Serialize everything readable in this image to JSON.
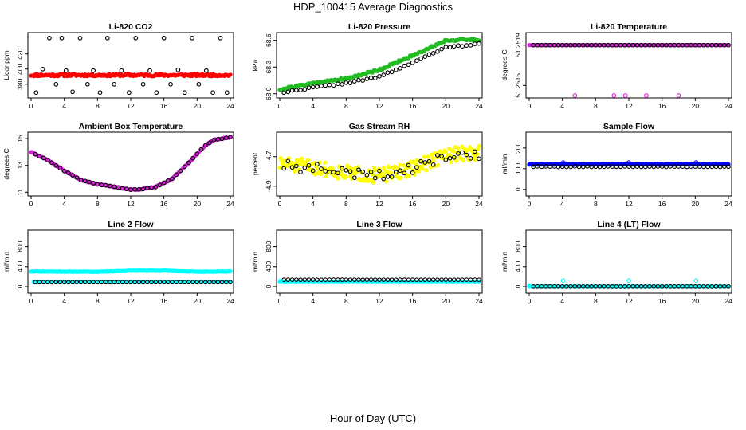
{
  "title": "HDP_100415  Average Diagnostics",
  "x_axis_title": "Hour of Day (UTC)",
  "colors": {
    "red": "#ff0000",
    "green": "#22bb22",
    "magenta": "#dd22dd",
    "yellow": "#ffff00",
    "blue": "#0000ff",
    "cyan": "#00ffff",
    "black": "#000000"
  },
  "chart_data": [
    {
      "type": "scatter",
      "title": "Li-820 CO2",
      "ylabel": "Licor ppm",
      "xlim": [
        0,
        24
      ],
      "ylim": [
        365,
        445
      ],
      "x_ticks": [
        0,
        4,
        8,
        12,
        16,
        20,
        24
      ],
      "y_ticks": [
        380,
        400,
        420
      ],
      "series": [
        {
          "color": "red",
          "marker": "filled",
          "x0": 0,
          "x1": 24,
          "n": 200,
          "base": 392,
          "noise": 1.5,
          "seed": 11
        },
        {
          "color": "black",
          "marker": "open",
          "x": [
            0.6,
            1.4,
            2.2,
            3.0,
            3.7,
            4.2,
            5.0,
            5.9,
            6.8,
            7.5,
            8.3,
            9.2,
            10.0,
            10.9,
            11.8,
            12.6,
            13.5,
            14.3,
            15.1,
            16.0,
            16.8,
            17.7,
            18.5,
            19.4,
            20.2,
            21.1,
            21.9,
            22.8,
            23.6
          ],
          "y": [
            369,
            400,
            441,
            380,
            441,
            398,
            370,
            441,
            380,
            398,
            369,
            441,
            380,
            398,
            369,
            441,
            380,
            398,
            369,
            441,
            380,
            399,
            369,
            441,
            380,
            398,
            369,
            441,
            369
          ]
        }
      ]
    },
    {
      "type": "scatter",
      "title": "Li-820 Pressure",
      "ylabel": "kPa",
      "xlim": [
        0,
        24
      ],
      "ylim": [
        67.98,
        68.66
      ],
      "x_ticks": [
        0,
        4,
        8,
        12,
        16,
        20,
        24
      ],
      "y_ticks": [
        68.0,
        68.3,
        68.6
      ],
      "y_tick_labels": [
        "68.0",
        "68.3",
        "68.6"
      ],
      "series": [
        {
          "color": "green",
          "marker": "filled",
          "curve": [
            [
              0,
              68.05
            ],
            [
              4,
              68.12
            ],
            [
              8,
              68.17
            ],
            [
              12,
              68.27
            ],
            [
              16,
              68.43
            ],
            [
              20,
              68.6
            ],
            [
              24,
              68.61
            ]
          ],
          "x0": 0,
          "x1": 24,
          "n": 160,
          "noise": 0.012,
          "seed": 21
        },
        {
          "color": "black",
          "marker": "open",
          "curve": [
            [
              0,
              68.01
            ],
            [
              4,
              68.07
            ],
            [
              8,
              68.12
            ],
            [
              12,
              68.19
            ],
            [
              16,
              68.35
            ],
            [
              20,
              68.52
            ],
            [
              24,
              68.56
            ]
          ],
          "x0": 0.5,
          "x1": 24,
          "n": 48,
          "noise": 0.008,
          "seed": 22
        }
      ]
    },
    {
      "type": "scatter",
      "title": "Li-820 Temperature",
      "ylabel": "degrees C",
      "xlim": [
        0,
        24
      ],
      "ylim": [
        51.2514,
        51.252
      ],
      "x_ticks": [
        0,
        4,
        8,
        12,
        16,
        20,
        24
      ],
      "y_ticks": [
        51.2515,
        51.2519
      ],
      "y_tick_labels": [
        "51.2515",
        "51.2519"
      ],
      "series": [
        {
          "color": "magenta",
          "marker": "filled",
          "x0": 0,
          "x1": 24,
          "n": 160,
          "base": 51.2519,
          "noise": 0,
          "seed": 31
        },
        {
          "color": "black",
          "marker": "open",
          "x0": 0.5,
          "x1": 24,
          "n": 48,
          "base": 51.2519,
          "noise": 0,
          "seed": 32
        },
        {
          "color": "magenta",
          "marker": "open",
          "x": [
            5.5,
            10.2,
            11.6,
            14.1,
            18.0
          ],
          "y": [
            51.2514,
            51.2514,
            51.2514,
            51.2514,
            51.2514
          ]
        }
      ]
    },
    {
      "type": "scatter",
      "title": "Ambient Box Temperature",
      "ylabel": "degrees C",
      "xlim": [
        0,
        24
      ],
      "ylim": [
        10.9,
        15.3
      ],
      "x_ticks": [
        0,
        4,
        8,
        12,
        16,
        20,
        24
      ],
      "y_ticks": [
        11,
        13,
        15
      ],
      "series": [
        {
          "color": "magenta",
          "marker": "filled",
          "curve": [
            [
              0,
              14.0
            ],
            [
              2,
              13.4
            ],
            [
              4,
              12.6
            ],
            [
              6,
              11.9
            ],
            [
              8,
              11.6
            ],
            [
              10,
              11.4
            ],
            [
              12,
              11.2
            ],
            [
              13,
              11.2
            ],
            [
              15,
              11.4
            ],
            [
              17,
              12.0
            ],
            [
              19,
              13.2
            ],
            [
              21,
              14.5
            ],
            [
              22,
              14.9
            ],
            [
              24,
              15.1
            ]
          ],
          "x0": 0,
          "x1": 24,
          "n": 160,
          "noise": 0.03,
          "seed": 41
        },
        {
          "color": "black",
          "marker": "open",
          "curve": [
            [
              0,
              14.0
            ],
            [
              2,
              13.4
            ],
            [
              4,
              12.6
            ],
            [
              6,
              11.9
            ],
            [
              8,
              11.6
            ],
            [
              10,
              11.4
            ],
            [
              12,
              11.2
            ],
            [
              13,
              11.2
            ],
            [
              15,
              11.4
            ],
            [
              17,
              12.0
            ],
            [
              19,
              13.2
            ],
            [
              21,
              14.5
            ],
            [
              22,
              14.9
            ],
            [
              24,
              15.1
            ]
          ],
          "x0": 0.5,
          "x1": 24,
          "n": 48,
          "noise": 0.02,
          "seed": 42
        }
      ]
    },
    {
      "type": "scatter",
      "title": "Gas Stream RH",
      "ylabel": "percent",
      "xlim": [
        0,
        24
      ],
      "ylim": [
        -4.95,
        -4.55
      ],
      "x_ticks": [
        0,
        4,
        8,
        12,
        16,
        20,
        24
      ],
      "y_ticks": [
        -4.9,
        -4.7
      ],
      "y_tick_labels": [
        "-4.9",
        "-4.7"
      ],
      "series": [
        {
          "color": "yellow",
          "marker": "filled",
          "curve": [
            [
              0,
              -4.75
            ],
            [
              4,
              -4.77
            ],
            [
              8,
              -4.81
            ],
            [
              12,
              -4.83
            ],
            [
              16,
              -4.78
            ],
            [
              20,
              -4.69
            ],
            [
              24,
              -4.67
            ]
          ],
          "x0": 0,
          "x1": 24,
          "n": 220,
          "noise": 0.05,
          "seed": 51
        },
        {
          "color": "black",
          "marker": "open",
          "curve": [
            [
              0,
              -4.76
            ],
            [
              4,
              -4.78
            ],
            [
              8,
              -4.81
            ],
            [
              12,
              -4.83
            ],
            [
              16,
              -4.78
            ],
            [
              20,
              -4.7
            ],
            [
              24,
              -4.68
            ]
          ],
          "x0": 0.5,
          "x1": 24,
          "n": 48,
          "noise": 0.035,
          "seed": 52
        }
      ]
    },
    {
      "type": "scatter",
      "title": "Sample Flow",
      "ylabel": "ml/min",
      "xlim": [
        0,
        24
      ],
      "ylim": [
        -20,
        265
      ],
      "x_ticks": [
        0,
        4,
        8,
        12,
        16,
        20,
        24
      ],
      "y_ticks": [
        0,
        100,
        200
      ],
      "series": [
        {
          "color": "blue",
          "marker": "filled",
          "x0": 0,
          "x1": 24,
          "n": 200,
          "base": 121,
          "noise": 2,
          "seed": 61
        },
        {
          "color": "black",
          "marker": "open",
          "x0": 0.5,
          "x1": 24,
          "n": 48,
          "base": 110,
          "noise": 1.5,
          "seed": 62
        },
        {
          "color": "blue",
          "marker": "open",
          "x": [
            4.1,
            12.0,
            20.1
          ],
          "y": [
            130,
            130,
            130
          ]
        }
      ]
    },
    {
      "type": "scatter",
      "title": "Line 2 Flow",
      "ylabel": "ml/min",
      "xlim": [
        0,
        24
      ],
      "ylim": [
        -80,
        1080
      ],
      "x_ticks": [
        0,
        4,
        8,
        12,
        16,
        20,
        24
      ],
      "y_ticks": [
        0,
        400,
        800
      ],
      "series": [
        {
          "color": "cyan",
          "marker": "filled",
          "curve": [
            [
              0,
              305
            ],
            [
              8,
              300
            ],
            [
              12,
              320
            ],
            [
              16,
              320
            ],
            [
              20,
              300
            ],
            [
              24,
              305
            ]
          ],
          "x0": 0,
          "x1": 24,
          "n": 200,
          "noise": 5,
          "seed": 71
        },
        {
          "color": "cyan",
          "marker": "filled",
          "x0": 0.3,
          "x1": 24,
          "n": 120,
          "base": 92,
          "noise": 3,
          "seed": 72
        },
        {
          "color": "black",
          "marker": "open",
          "x0": 0.5,
          "x1": 24,
          "n": 48,
          "base": 90,
          "noise": 1,
          "seed": 73
        }
      ]
    },
    {
      "type": "scatter",
      "title": "Line 3 Flow",
      "ylabel": "ml/min",
      "xlim": [
        0,
        24
      ],
      "ylim": [
        -80,
        1080
      ],
      "x_ticks": [
        0,
        4,
        8,
        12,
        16,
        20,
        24
      ],
      "y_ticks": [
        0,
        400,
        800
      ],
      "series": [
        {
          "color": "cyan",
          "marker": "filled",
          "x0": 0,
          "x1": 24,
          "n": 200,
          "base": 95,
          "noise": 4,
          "seed": 81
        },
        {
          "color": "black",
          "marker": "open",
          "x0": 0.5,
          "x1": 24,
          "n": 48,
          "base": 140,
          "noise": 1,
          "seed": 82
        },
        {
          "color": "cyan",
          "marker": "open",
          "x": [
            0.1
          ],
          "y": [
            120
          ]
        }
      ]
    },
    {
      "type": "scatter",
      "title": "Line 4 (LT) Flow",
      "ylabel": "ml/min",
      "xlim": [
        0,
        24
      ],
      "ylim": [
        -80,
        1080
      ],
      "x_ticks": [
        0,
        4,
        8,
        12,
        16,
        20,
        24
      ],
      "y_ticks": [
        0,
        400,
        800
      ],
      "series": [
        {
          "color": "cyan",
          "marker": "filled",
          "x0": 0,
          "x1": 24,
          "n": 200,
          "base": 2,
          "noise": 1,
          "seed": 91
        },
        {
          "color": "black",
          "marker": "open",
          "x0": 0.5,
          "x1": 24,
          "n": 48,
          "base": 2,
          "noise": 0.5,
          "seed": 92
        },
        {
          "color": "cyan",
          "marker": "open",
          "x": [
            0.0,
            4.1,
            12.0,
            20.1
          ],
          "y": [
            8,
            120,
            120,
            120
          ]
        }
      ]
    }
  ]
}
